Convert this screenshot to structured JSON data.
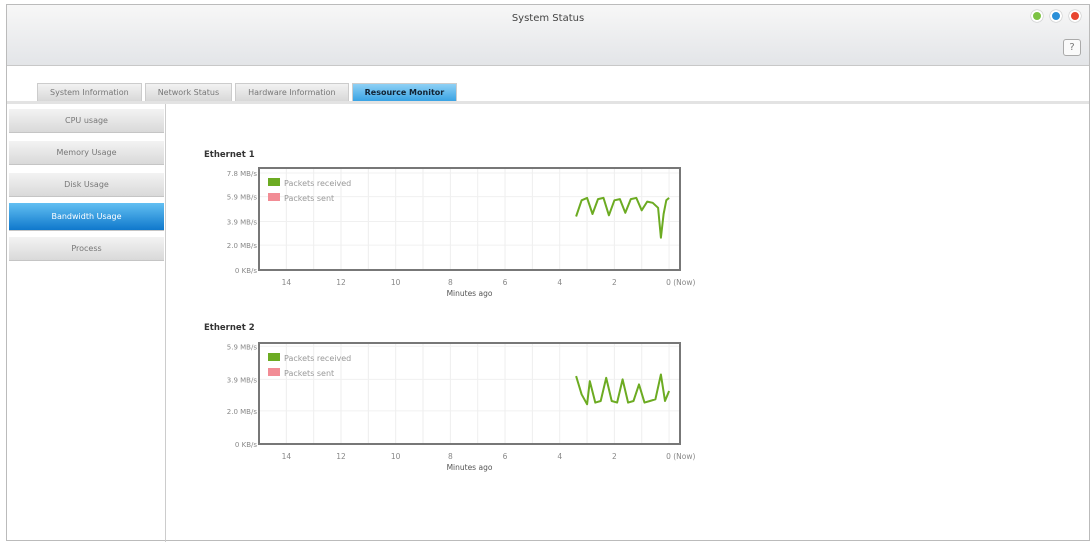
{
  "window": {
    "title": "System Status",
    "help_label": "?",
    "buttons": {
      "minimize": "#7cc243",
      "maximize": "#2a8fd8",
      "close": "#e8452f"
    }
  },
  "tabs": [
    {
      "label": "System Information"
    },
    {
      "label": "Network Status"
    },
    {
      "label": "Hardware Information"
    },
    {
      "label": "Resource Monitor",
      "active": true
    }
  ],
  "sidebar": {
    "items": [
      {
        "label": "CPU usage"
      },
      {
        "label": "Memory Usage"
      },
      {
        "label": "Disk Usage"
      },
      {
        "label": "Bandwidth Usage",
        "active": true
      },
      {
        "label": "Process"
      }
    ]
  },
  "chart_data": [
    {
      "type": "line",
      "title": "Ethernet 1",
      "xlabel": "Minutes ago",
      "ylabel": "",
      "x_ticks": [
        "14",
        "12",
        "10",
        "8",
        "6",
        "4",
        "2",
        "0 (Now)"
      ],
      "x_tick_values": [
        14,
        12,
        10,
        8,
        6,
        4,
        2,
        0
      ],
      "y_ticks": [
        "0 KB/s",
        "2.0 MB/s",
        "3.9 MB/s",
        "5.9 MB/s",
        "7.8 MB/s"
      ],
      "y_tick_values": [
        0,
        2.0,
        3.9,
        5.9,
        7.8
      ],
      "xlim": [
        15,
        -0.4
      ],
      "ylim": [
        0,
        8.2
      ],
      "grid": true,
      "legend": "top-left",
      "series": [
        {
          "name": "Packets received",
          "color": "#6cab22",
          "x": [
            3.4,
            3.2,
            3.0,
            2.8,
            2.6,
            2.4,
            2.2,
            2.0,
            1.8,
            1.6,
            1.4,
            1.2,
            1.0,
            0.8,
            0.6,
            0.4,
            0.3,
            0.2,
            0.1,
            0
          ],
          "y": [
            4.3,
            5.6,
            5.8,
            4.5,
            5.7,
            5.8,
            4.4,
            5.6,
            5.7,
            4.6,
            5.7,
            5.8,
            4.8,
            5.5,
            5.4,
            5.0,
            2.6,
            4.5,
            5.6,
            5.8
          ]
        },
        {
          "name": "Packets sent",
          "color": "#f28c95",
          "x": [],
          "y": []
        }
      ]
    },
    {
      "type": "line",
      "title": "Ethernet 2",
      "xlabel": "Minutes ago",
      "ylabel": "",
      "x_ticks": [
        "14",
        "12",
        "10",
        "8",
        "6",
        "4",
        "2",
        "0 (Now)"
      ],
      "x_tick_values": [
        14,
        12,
        10,
        8,
        6,
        4,
        2,
        0
      ],
      "y_ticks": [
        "0 KB/s",
        "2.0 MB/s",
        "3.9 MB/s",
        "5.9 MB/s"
      ],
      "y_tick_values": [
        0,
        2.0,
        3.9,
        5.9
      ],
      "xlim": [
        15,
        -0.4
      ],
      "ylim": [
        0,
        6.1
      ],
      "grid": true,
      "legend": "top-left",
      "series": [
        {
          "name": "Packets received",
          "color": "#6cab22",
          "x": [
            3.4,
            3.2,
            3.0,
            2.9,
            2.7,
            2.5,
            2.3,
            2.1,
            1.9,
            1.7,
            1.5,
            1.3,
            1.1,
            0.9,
            0.7,
            0.5,
            0.3,
            0.15,
            0
          ],
          "y": [
            4.1,
            3.0,
            2.4,
            3.8,
            2.5,
            2.6,
            4.0,
            2.6,
            2.5,
            3.9,
            2.5,
            2.6,
            3.6,
            2.5,
            2.6,
            2.7,
            4.2,
            2.6,
            3.2
          ]
        },
        {
          "name": "Packets sent",
          "color": "#f28c95",
          "x": [],
          "y": []
        }
      ]
    }
  ]
}
